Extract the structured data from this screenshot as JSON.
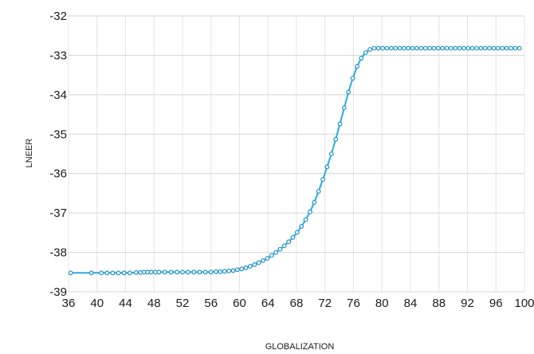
{
  "chart_data": {
    "type": "line",
    "xlabel": "GLOBALIZATION",
    "ylabel": "LNEER",
    "xlim": [
      36,
      100
    ],
    "ylim": [
      -39,
      -32
    ],
    "x_ticks": [
      36,
      40,
      44,
      48,
      52,
      56,
      60,
      64,
      68,
      72,
      76,
      80,
      84,
      88,
      92,
      96,
      100
    ],
    "y_ticks": [
      -32,
      -33,
      -34,
      -35,
      -36,
      -37,
      -38,
      -39
    ],
    "grid": true,
    "legend": "none",
    "line_color": "#29abe2",
    "marker_color": "#1f90c8",
    "series": [
      {
        "x": [
          36.3,
          39.2,
          40.6,
          41.4,
          42.2,
          43.0,
          43.8,
          44.6,
          45.5,
          46.1,
          46.6,
          47.1,
          47.6,
          48.2,
          48.7,
          49.5,
          50.4,
          51.2,
          52.0,
          52.8,
          53.6,
          54.4,
          55.2,
          56.0,
          56.7,
          57.3,
          57.9,
          58.5,
          59.1,
          59.7,
          60.3,
          60.9,
          61.5,
          62.1,
          62.7,
          63.3,
          63.9,
          64.5,
          65.1,
          65.7,
          66.3,
          66.9,
          67.5,
          68.1,
          68.7,
          69.3,
          69.9,
          70.5,
          71.1,
          71.7,
          72.3,
          72.9,
          73.5,
          74.1,
          74.7,
          75.3,
          75.9,
          76.5,
          77.1,
          77.7,
          78.3,
          78.9,
          79.5,
          80.1,
          80.7,
          81.3,
          81.9,
          82.5,
          83.1,
          83.7,
          84.3,
          84.9,
          85.5,
          86.1,
          86.7,
          87.3,
          87.9,
          88.5,
          89.1,
          89.7,
          90.3,
          90.9,
          91.5,
          92.1,
          92.7,
          93.3,
          93.9,
          94.5,
          95.1,
          95.7,
          96.3,
          96.9,
          97.5,
          98.1,
          98.7,
          99.3
        ],
        "y": [
          -38.52,
          -38.52,
          -38.52,
          -38.52,
          -38.52,
          -38.52,
          -38.52,
          -38.52,
          -38.51,
          -38.51,
          -38.5,
          -38.5,
          -38.5,
          -38.5,
          -38.5,
          -38.5,
          -38.5,
          -38.5,
          -38.5,
          -38.5,
          -38.5,
          -38.5,
          -38.5,
          -38.5,
          -38.49,
          -38.49,
          -38.48,
          -38.47,
          -38.46,
          -38.44,
          -38.42,
          -38.39,
          -38.35,
          -38.31,
          -38.26,
          -38.21,
          -38.15,
          -38.08,
          -38.0,
          -37.92,
          -37.83,
          -37.73,
          -37.62,
          -37.49,
          -37.34,
          -37.17,
          -36.97,
          -36.73,
          -36.45,
          -36.15,
          -35.83,
          -35.5,
          -35.13,
          -34.74,
          -34.33,
          -33.93,
          -33.58,
          -33.28,
          -33.07,
          -32.93,
          -32.85,
          -32.82,
          -32.82,
          -32.82,
          -32.82,
          -32.82,
          -32.82,
          -32.82,
          -32.82,
          -32.82,
          -32.82,
          -32.82,
          -32.82,
          -32.82,
          -32.82,
          -32.82,
          -32.82,
          -32.82,
          -32.82,
          -32.82,
          -32.82,
          -32.82,
          -32.82,
          -32.82,
          -32.82,
          -32.82,
          -32.82,
          -32.82,
          -32.82,
          -32.82,
          -32.82,
          -32.82,
          -32.82,
          -32.82,
          -32.82,
          -32.82
        ]
      }
    ]
  }
}
